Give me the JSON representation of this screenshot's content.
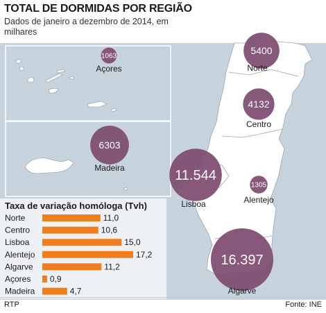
{
  "header": {
    "title": "TOTAL DE DORMIDAS POR REGIÃO",
    "subtitle": "Dados de janeiro a dezembro de 2014, em milhares"
  },
  "footer": {
    "source_left": "RTP",
    "source_right": "Fonte: INE"
  },
  "colors": {
    "bubble": "#7d4a6e",
    "bar": "#f07d1e",
    "land": "#ffffff",
    "sea": "#c6d2dc",
    "panel_bg": "#eef1f4"
  },
  "chart_data": [
    {
      "type": "bubble-map",
      "title": "TOTAL DE DORMIDAS POR REGIÃO",
      "subtitle": "Dados de janeiro a dezembro de 2014, em milhares",
      "series": [
        {
          "region": "Norte",
          "value": 5400,
          "value_label": "5400"
        },
        {
          "region": "Centro",
          "value": 4132,
          "value_label": "4132"
        },
        {
          "region": "Lisboa",
          "value": 11544,
          "value_label": "11.544"
        },
        {
          "region": "Alentejo",
          "value": 1305,
          "value_label": "1305"
        },
        {
          "region": "Algarve",
          "value": 16397,
          "value_label": "16.397"
        },
        {
          "region": "Açores",
          "value": 1063,
          "value_label": "1063"
        },
        {
          "region": "Madeira",
          "value": 6303,
          "value_label": "6303"
        }
      ]
    },
    {
      "type": "bar",
      "orientation": "horizontal",
      "title": "Taxa de variação homóloga (Tvh)",
      "categories": [
        "Norte",
        "Centro",
        "Lisboa",
        "Alentejo",
        "Algarve",
        "Açores",
        "Madeira"
      ],
      "values": [
        11.0,
        10.6,
        15.0,
        17.2,
        11.2,
        0.9,
        4.7
      ],
      "value_labels": [
        "11,0",
        "10,6",
        "15,0",
        "17,2",
        "11,2",
        "0,9",
        "4,7"
      ],
      "xlim": [
        0,
        17.2
      ]
    }
  ]
}
